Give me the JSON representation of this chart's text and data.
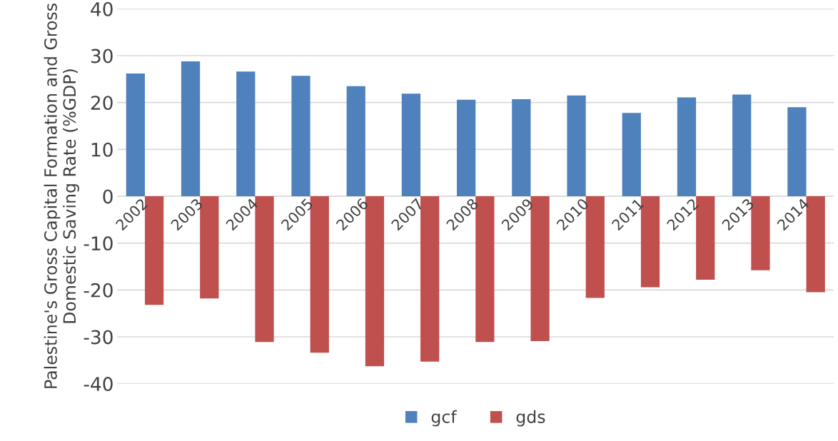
{
  "chart_data": {
    "type": "bar",
    "ylabel": "Palestine's Gross Capital Formation and Gross Domestic Saving Rate (%GDP)",
    "categories": [
      "2002",
      "2003",
      "2004",
      "2005",
      "2006",
      "2007",
      "2008",
      "2009",
      "2010",
      "2011",
      "2012",
      "2013",
      "2014"
    ],
    "series": [
      {
        "name": "gcf",
        "color": "#4f81bd",
        "values": [
          26.2,
          28.8,
          26.6,
          25.7,
          23.5,
          21.9,
          20.6,
          20.7,
          21.5,
          17.8,
          21.1,
          21.7,
          19.0
        ]
      },
      {
        "name": "gds",
        "color": "#c0504d",
        "values": [
          -23.2,
          -21.8,
          -31.1,
          -33.4,
          -36.3,
          -35.3,
          -31.1,
          -30.9,
          -21.7,
          -19.4,
          -17.8,
          -15.8,
          -20.5
        ]
      }
    ],
    "ylim": [
      -40,
      40
    ],
    "yticks": [
      -40,
      -30,
      -20,
      -10,
      0,
      10,
      20,
      30,
      40
    ],
    "grid": "y",
    "legend": "bottom"
  }
}
